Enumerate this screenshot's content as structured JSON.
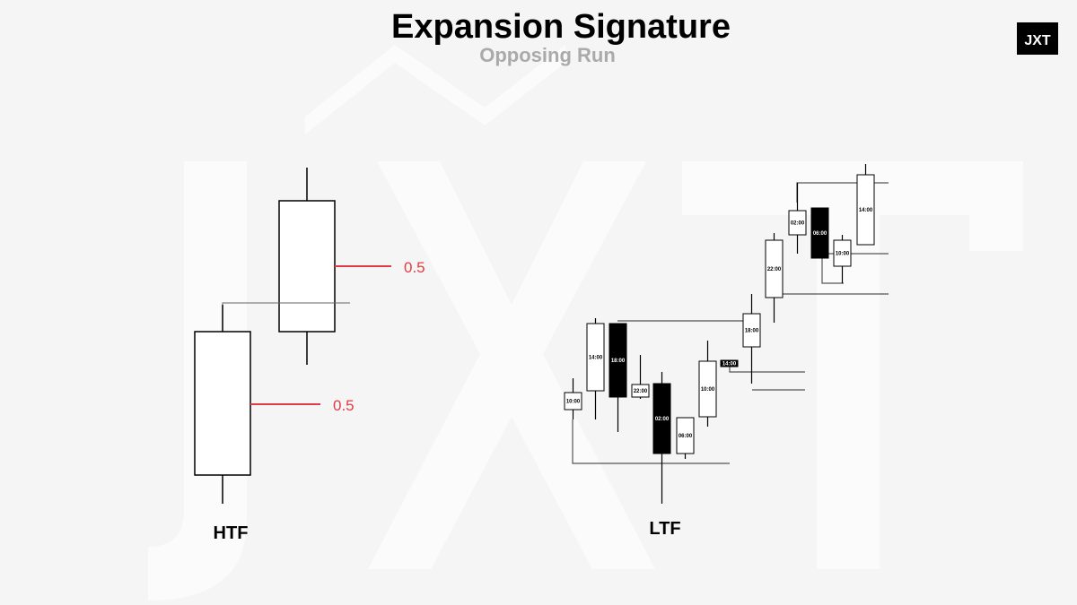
{
  "header": {
    "title": "Expansion Signature",
    "subtitle": "Opposing Run"
  },
  "logo": {
    "text": "JXT"
  },
  "htf": {
    "label": "HTF",
    "levels": [
      "0.5",
      "0.5"
    ]
  },
  "ltf": {
    "label": "LTF",
    "candles": [
      "10:00",
      "14:00",
      "18:00",
      "22:00",
      "02:00",
      "06:00",
      "10:00",
      "14:00",
      "18:00",
      "22:00",
      "02:00",
      "06:00",
      "10:00",
      "14:00"
    ]
  }
}
